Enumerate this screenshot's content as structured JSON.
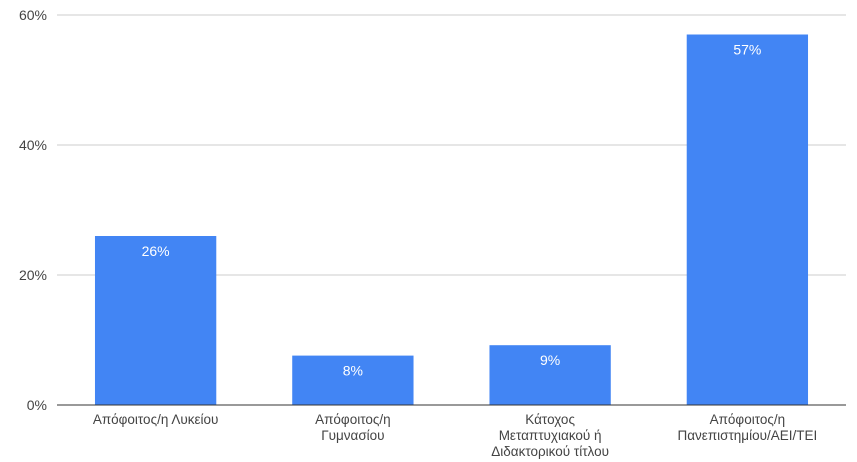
{
  "chart_data": {
    "type": "bar",
    "categories": [
      [
        "Απόφοιτος/η Λυκείου"
      ],
      [
        "Απόφοιτος/η",
        "Γυμνασίου"
      ],
      [
        "Κάτοχος",
        "Μεταπτυχιακού ή",
        "Διδακτορικού τίτλου"
      ],
      [
        "Απόφοιτος/η",
        "Πανεπιστημίου/ΑΕΙ/ΤΕΙ"
      ]
    ],
    "values": [
      26,
      7.6,
      9.2,
      57
    ],
    "data_labels": [
      "26%",
      "8%",
      "9%",
      "57%"
    ],
    "y_ticks": [
      0,
      20,
      40,
      60
    ],
    "y_tick_labels": [
      "0%",
      "20%",
      "40%",
      "60%"
    ],
    "ylim": [
      0,
      60
    ],
    "grid": true,
    "legend": "none",
    "colors": {
      "bar": "#4285f4",
      "grid": "#cccccc",
      "axis": "#333333",
      "text": "#444444",
      "label_text": "#ffffff"
    }
  }
}
